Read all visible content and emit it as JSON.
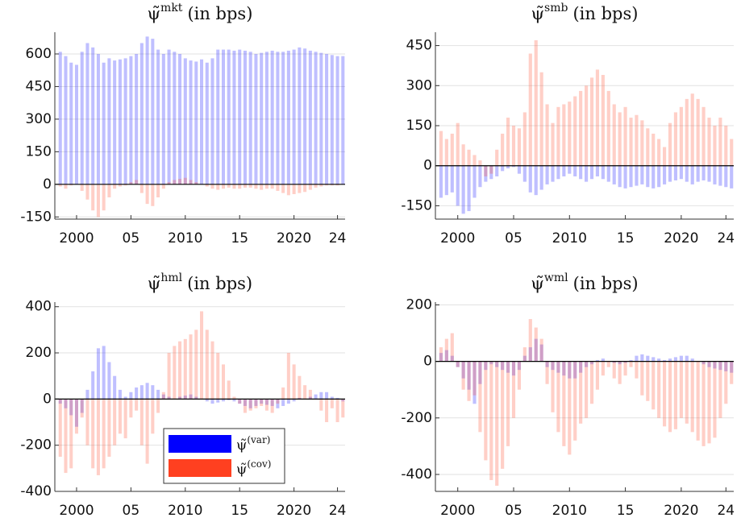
{
  "chart_data": [
    {
      "type": "bar",
      "title": {
        "symbol": "ψ̃",
        "superscript": "mkt",
        "suffix": "(in bps)"
      },
      "x": [
        1998.5,
        1999,
        1999.5,
        2000,
        2000.5,
        2001,
        2001.5,
        2002,
        2002.5,
        2003,
        2003.5,
        2004,
        2004.5,
        2005,
        2005.5,
        2006,
        2006.5,
        2007,
        2007.5,
        2008,
        2008.5,
        2009,
        2009.5,
        2010,
        2010.5,
        2011,
        2011.5,
        2012,
        2012.5,
        2013,
        2013.5,
        2014,
        2014.5,
        2015,
        2015.5,
        2016,
        2016.5,
        2017,
        2017.5,
        2018,
        2018.5,
        2019,
        2019.5,
        2020,
        2020.5,
        2021,
        2021.5,
        2022,
        2022.5,
        2023,
        2023.5,
        2024,
        2024.5
      ],
      "series": [
        {
          "name": "ψ̃",
          "superscript": "(var)",
          "color": "#0000ff",
          "values": [
            610,
            590,
            560,
            550,
            610,
            650,
            630,
            600,
            560,
            580,
            570,
            575,
            580,
            590,
            600,
            650,
            680,
            670,
            620,
            600,
            620,
            610,
            600,
            580,
            570,
            565,
            575,
            560,
            580,
            620,
            620,
            620,
            615,
            620,
            615,
            610,
            600,
            605,
            610,
            615,
            610,
            610,
            615,
            620,
            630,
            625,
            615,
            610,
            605,
            600,
            595,
            590,
            590
          ]
        },
        {
          "name": "ψ̃",
          "superscript": "(cov)",
          "color": "#ff4020",
          "values": [
            -10,
            -20,
            -5,
            0,
            -30,
            -70,
            -120,
            -150,
            -120,
            -60,
            -20,
            -10,
            -5,
            10,
            20,
            -40,
            -90,
            -100,
            -60,
            -20,
            10,
            20,
            25,
            30,
            20,
            10,
            0,
            -10,
            -20,
            -25,
            -20,
            -15,
            -20,
            -20,
            -15,
            -15,
            -20,
            -25,
            -20,
            -20,
            -30,
            -40,
            -50,
            -45,
            -40,
            -35,
            -25,
            -15,
            -10,
            -5,
            -5,
            -5,
            0
          ]
        }
      ],
      "xlim": [
        1998,
        2024.7
      ],
      "xticks": [
        2000,
        {
          "value": 2005,
          "label": "05"
        },
        2010,
        {
          "value": 2015,
          "label": "15"
        },
        2020,
        {
          "value": 2024,
          "label": "24"
        }
      ],
      "ylim": [
        -160,
        700
      ],
      "yticks": [
        -150,
        0,
        150,
        300,
        450,
        600
      ],
      "grid": true,
      "legend": false
    },
    {
      "type": "bar",
      "title": {
        "symbol": "ψ̃",
        "superscript": "smb",
        "suffix": "(in bps)"
      },
      "x": [
        1998.5,
        1999,
        1999.5,
        2000,
        2000.5,
        2001,
        2001.5,
        2002,
        2002.5,
        2003,
        2003.5,
        2004,
        2004.5,
        2005,
        2005.5,
        2006,
        2006.5,
        2007,
        2007.5,
        2008,
        2008.5,
        2009,
        2009.5,
        2010,
        2010.5,
        2011,
        2011.5,
        2012,
        2012.5,
        2013,
        2013.5,
        2014,
        2014.5,
        2015,
        2015.5,
        2016,
        2016.5,
        2017,
        2017.5,
        2018,
        2018.5,
        2019,
        2019.5,
        2020,
        2020.5,
        2021,
        2021.5,
        2022,
        2022.5,
        2023,
        2023.5,
        2024,
        2024.5
      ],
      "series": [
        {
          "name": "ψ̃",
          "superscript": "(var)",
          "color": "#0000ff",
          "values": [
            -120,
            -110,
            -100,
            -150,
            -180,
            -170,
            -120,
            -80,
            -60,
            -50,
            -40,
            -20,
            -10,
            -5,
            -30,
            -60,
            -100,
            -110,
            -90,
            -70,
            -60,
            -50,
            -40,
            -30,
            -40,
            -50,
            -60,
            -50,
            -40,
            -50,
            -60,
            -70,
            -80,
            -85,
            -80,
            -75,
            -70,
            -80,
            -85,
            -80,
            -70,
            -60,
            -55,
            -50,
            -60,
            -70,
            -60,
            -55,
            -60,
            -70,
            -75,
            -80,
            -85
          ]
        },
        {
          "name": "ψ̃",
          "superscript": "(cov)",
          "color": "#ff4020",
          "values": [
            130,
            100,
            120,
            160,
            80,
            60,
            40,
            20,
            -40,
            -30,
            60,
            120,
            180,
            150,
            140,
            200,
            420,
            470,
            350,
            230,
            160,
            220,
            230,
            240,
            260,
            280,
            300,
            330,
            360,
            340,
            280,
            230,
            200,
            220,
            180,
            190,
            170,
            140,
            120,
            100,
            70,
            160,
            200,
            220,
            250,
            270,
            250,
            220,
            180,
            150,
            180,
            150,
            100
          ]
        }
      ],
      "xlim": [
        1998,
        2024.7
      ],
      "xticks": [
        2000,
        {
          "value": 2005,
          "label": "05"
        },
        2010,
        {
          "value": 2015,
          "label": "15"
        },
        2020,
        {
          "value": 2024,
          "label": "24"
        }
      ],
      "ylim": [
        -200,
        500
      ],
      "yticks": [
        -150,
        0,
        150,
        300,
        450
      ],
      "grid": true,
      "legend": false
    },
    {
      "type": "bar",
      "title": {
        "symbol": "ψ̃",
        "superscript": "hml",
        "suffix": "(in bps)"
      },
      "x": [
        1998.5,
        1999,
        1999.5,
        2000,
        2000.5,
        2001,
        2001.5,
        2002,
        2002.5,
        2003,
        2003.5,
        2004,
        2004.5,
        2005,
        2005.5,
        2006,
        2006.5,
        2007,
        2007.5,
        2008,
        2008.5,
        2009,
        2009.5,
        2010,
        2010.5,
        2011,
        2011.5,
        2012,
        2012.5,
        2013,
        2013.5,
        2014,
        2014.5,
        2015,
        2015.5,
        2016,
        2016.5,
        2017,
        2017.5,
        2018,
        2018.5,
        2019,
        2019.5,
        2020,
        2020.5,
        2021,
        2021.5,
        2022,
        2022.5,
        2023,
        2023.5,
        2024,
        2024.5
      ],
      "series": [
        {
          "name": "ψ̃",
          "superscript": "(var)",
          "color": "#0000ff",
          "values": [
            -20,
            -40,
            -70,
            -120,
            -60,
            40,
            120,
            220,
            230,
            160,
            100,
            40,
            10,
            30,
            50,
            60,
            70,
            60,
            40,
            20,
            10,
            0,
            10,
            15,
            20,
            10,
            0,
            -10,
            -20,
            -15,
            -10,
            -5,
            -10,
            -20,
            -30,
            -40,
            -30,
            -20,
            -25,
            -30,
            -40,
            -30,
            -20,
            -10,
            5,
            0,
            10,
            20,
            30,
            30,
            10,
            5,
            -10
          ]
        },
        {
          "name": "ψ̃",
          "superscript": "(cov)",
          "color": "#ff4020",
          "values": [
            -250,
            -320,
            -300,
            -150,
            -80,
            -200,
            -300,
            -330,
            -300,
            -250,
            -200,
            -150,
            -170,
            -80,
            -50,
            -200,
            -280,
            -150,
            -60,
            30,
            200,
            230,
            250,
            260,
            280,
            300,
            380,
            300,
            250,
            200,
            150,
            80,
            10,
            -20,
            -60,
            -50,
            -40,
            -30,
            -50,
            -60,
            -20,
            50,
            200,
            150,
            100,
            60,
            40,
            0,
            -50,
            -100,
            -40,
            -100,
            -80
          ]
        }
      ],
      "xlim": [
        1998,
        2024.7
      ],
      "xticks": [
        2000,
        {
          "value": 2005,
          "label": "05"
        },
        2010,
        {
          "value": 2015,
          "label": "15"
        },
        2020,
        {
          "value": 2024,
          "label": "24"
        }
      ],
      "ylim": [
        -400,
        420
      ],
      "yticks": [
        -400,
        -200,
        0,
        200,
        400
      ],
      "grid": true,
      "legend": true,
      "legend_loc": "lower center"
    },
    {
      "type": "bar",
      "title": {
        "symbol": "ψ̃",
        "superscript": "wml",
        "suffix": "(in bps)"
      },
      "x": [
        1998.5,
        1999,
        1999.5,
        2000,
        2000.5,
        2001,
        2001.5,
        2002,
        2002.5,
        2003,
        2003.5,
        2004,
        2004.5,
        2005,
        2005.5,
        2006,
        2006.5,
        2007,
        2007.5,
        2008,
        2008.5,
        2009,
        2009.5,
        2010,
        2010.5,
        2011,
        2011.5,
        2012,
        2012.5,
        2013,
        2013.5,
        2014,
        2014.5,
        2015,
        2015.5,
        2016,
        2016.5,
        2017,
        2017.5,
        2018,
        2018.5,
        2019,
        2019.5,
        2020,
        2020.5,
        2021,
        2021.5,
        2022,
        2022.5,
        2023,
        2023.5,
        2024,
        2024.5
      ],
      "series": [
        {
          "name": "ψ̃",
          "superscript": "(var)",
          "color": "#0000ff",
          "values": [
            30,
            40,
            20,
            -20,
            -60,
            -100,
            -150,
            -80,
            -30,
            -10,
            -20,
            -30,
            -40,
            -50,
            -30,
            20,
            50,
            80,
            60,
            -20,
            -30,
            -40,
            -50,
            -60,
            -60,
            -40,
            -20,
            -10,
            5,
            10,
            0,
            -5,
            -10,
            -5,
            5,
            20,
            25,
            20,
            15,
            10,
            5,
            10,
            15,
            20,
            20,
            10,
            0,
            -10,
            -20,
            -25,
            -30,
            -35,
            -40
          ]
        },
        {
          "name": "ψ̃",
          "superscript": "(cov)",
          "color": "#ff4020",
          "values": [
            50,
            80,
            100,
            -20,
            -100,
            -140,
            -120,
            -250,
            -350,
            -420,
            -440,
            -380,
            -300,
            -200,
            -100,
            50,
            150,
            120,
            80,
            -80,
            -180,
            -250,
            -300,
            -330,
            -280,
            -220,
            -200,
            -150,
            -100,
            -50,
            -20,
            -60,
            -80,
            -50,
            -20,
            -60,
            -120,
            -140,
            -170,
            -200,
            -230,
            -250,
            -240,
            -200,
            -220,
            -250,
            -280,
            -300,
            -290,
            -270,
            -200,
            -150,
            -80
          ]
        }
      ],
      "xlim": [
        1998,
        2024.7
      ],
      "xticks": [
        2000,
        {
          "value": 2005,
          "label": "05"
        },
        2010,
        {
          "value": 2015,
          "label": "15"
        },
        2020,
        {
          "value": 2024,
          "label": "24"
        }
      ],
      "ylim": [
        -460,
        210
      ],
      "yticks": [
        -400,
        -200,
        0,
        200
      ],
      "grid": true,
      "legend": false
    }
  ]
}
